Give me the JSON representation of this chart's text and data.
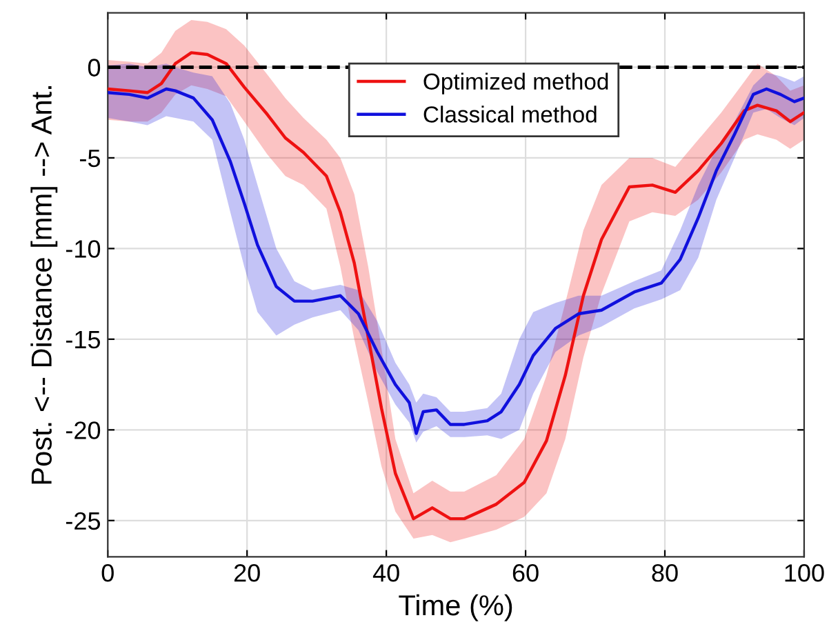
{
  "chart_data": {
    "type": "line",
    "xlabel": "Time (%)",
    "ylabel": "Post. <-- Distance [mm] --> Ant.",
    "xlim": [
      0,
      100
    ],
    "ylim": [
      -27,
      3
    ],
    "xticks": [
      0,
      20,
      40,
      60,
      80,
      100
    ],
    "yticks": [
      -25,
      -20,
      -15,
      -10,
      -5,
      0
    ],
    "grid": true,
    "legend": "top",
    "marker": "none",
    "line_style": "solid",
    "ref_lines": [
      {
        "axis": "y",
        "value": 0,
        "color": "#000000",
        "line_style": "dashed"
      }
    ],
    "series": [
      {
        "name": "Optimized method",
        "color": "#ee1111",
        "x": [
          0,
          3.1,
          5.7,
          7.7,
          9.7,
          12,
          14.3,
          17,
          19.6,
          22.9,
          25.5,
          28.1,
          31.4,
          33.4,
          35.4,
          37.4,
          39.3,
          41.3,
          43.9,
          46.6,
          49.2,
          51.2,
          55.8,
          59.8,
          63,
          65.7,
          68.3,
          70.9,
          74.9,
          78.2,
          81.5,
          84.8,
          88.1,
          91.4,
          93.3,
          96,
          98,
          100
        ],
        "values": [
          -1.2,
          -1.3,
          -1.4,
          -0.9,
          0.2,
          0.8,
          0.7,
          0.2,
          -1.1,
          -2.6,
          -3.9,
          -4.7,
          -6.0,
          -8.0,
          -10.8,
          -14.9,
          -18.8,
          -22.4,
          -24.9,
          -24.3,
          -24.9,
          -24.9,
          -24.1,
          -22.9,
          -20.6,
          -17.0,
          -12.6,
          -9.5,
          -6.6,
          -6.5,
          -6.9,
          -5.7,
          -4.2,
          -2.4,
          -2.1,
          -2.4,
          -3.0,
          -2.5
        ],
        "upper": [
          0.4,
          0.3,
          0.2,
          0.8,
          2.0,
          2.6,
          2.5,
          2.1,
          1.2,
          -0.4,
          -1.7,
          -2.8,
          -4.0,
          -5.0,
          -7.0,
          -11.0,
          -15.5,
          -20.5,
          -23.5,
          -22.8,
          -23.4,
          -23.4,
          -22.5,
          -20.5,
          -17.0,
          -13.0,
          -9.0,
          -6.5,
          -5.0,
          -5.0,
          -5.5,
          -4.0,
          -2.5,
          -0.8,
          0.2,
          -0.5,
          -1.3,
          -1.0
        ],
        "lower": [
          -2.9,
          -3.0,
          -3.0,
          -2.5,
          -1.5,
          -1.0,
          -1.2,
          -1.6,
          -3.0,
          -4.8,
          -6.0,
          -6.5,
          -7.8,
          -11.0,
          -15.0,
          -18.5,
          -22.0,
          -24.5,
          -26.0,
          -25.8,
          -26.2,
          -26.0,
          -25.5,
          -24.8,
          -23.5,
          -20.5,
          -16.0,
          -12.5,
          -8.5,
          -8.0,
          -8.2,
          -7.3,
          -5.8,
          -4.0,
          -3.7,
          -4.0,
          -4.5,
          -4.0
        ]
      },
      {
        "name": "Classical method",
        "color": "#1010dd",
        "x": [
          0,
          3.1,
          5.7,
          8.4,
          9.7,
          12.3,
          15,
          17.6,
          19.6,
          21.5,
          24.2,
          26.8,
          29.4,
          33.4,
          36,
          38.7,
          41.3,
          43.3,
          44.3,
          45.3,
          47.2,
          49.2,
          51.2,
          54.5,
          56.5,
          59.1,
          61.1,
          64.3,
          67.6,
          70.9,
          75.6,
          79.5,
          82.2,
          84.8,
          87.4,
          90,
          92.7,
          94.6,
          96.6,
          98.6,
          100
        ],
        "values": [
          -1.4,
          -1.5,
          -1.7,
          -1.2,
          -1.3,
          -1.7,
          -2.9,
          -5.2,
          -7.5,
          -9.8,
          -12.1,
          -12.9,
          -12.9,
          -12.6,
          -13.6,
          -15.7,
          -17.5,
          -18.5,
          -20.2,
          -19.0,
          -18.9,
          -19.7,
          -19.7,
          -19.5,
          -19.0,
          -17.5,
          -15.9,
          -14.4,
          -13.6,
          -13.4,
          -12.4,
          -11.9,
          -10.6,
          -8.3,
          -5.7,
          -3.7,
          -1.5,
          -1.2,
          -1.5,
          -1.9,
          -1.7
        ],
        "upper": [
          0.1,
          0.2,
          0.0,
          0.2,
          0.0,
          -0.3,
          -0.5,
          -2.0,
          -4.0,
          -6.5,
          -10.0,
          -11.8,
          -12.3,
          -12.0,
          -12.3,
          -14.0,
          -16.3,
          -17.5,
          -18.5,
          -18.0,
          -18.2,
          -19.0,
          -19.0,
          -18.8,
          -18.0,
          -15.0,
          -13.5,
          -13.0,
          -12.6,
          -12.6,
          -11.8,
          -11.2,
          -9.0,
          -6.5,
          -4.5,
          -3.0,
          -1.0,
          -0.3,
          -0.5,
          -0.8,
          -0.5
        ],
        "lower": [
          -2.8,
          -3.0,
          -3.2,
          -2.7,
          -2.8,
          -3.0,
          -4.0,
          -8.0,
          -11.0,
          -13.5,
          -14.8,
          -14.2,
          -13.8,
          -13.4,
          -14.5,
          -16.8,
          -18.6,
          -19.6,
          -20.7,
          -20.1,
          -19.8,
          -20.4,
          -20.4,
          -20.3,
          -20.5,
          -20.0,
          -18.0,
          -15.7,
          -14.8,
          -14.3,
          -13.3,
          -12.8,
          -12.3,
          -10.5,
          -7.3,
          -5.0,
          -2.5,
          -2.3,
          -2.8,
          -3.2,
          -2.8
        ]
      }
    ]
  }
}
